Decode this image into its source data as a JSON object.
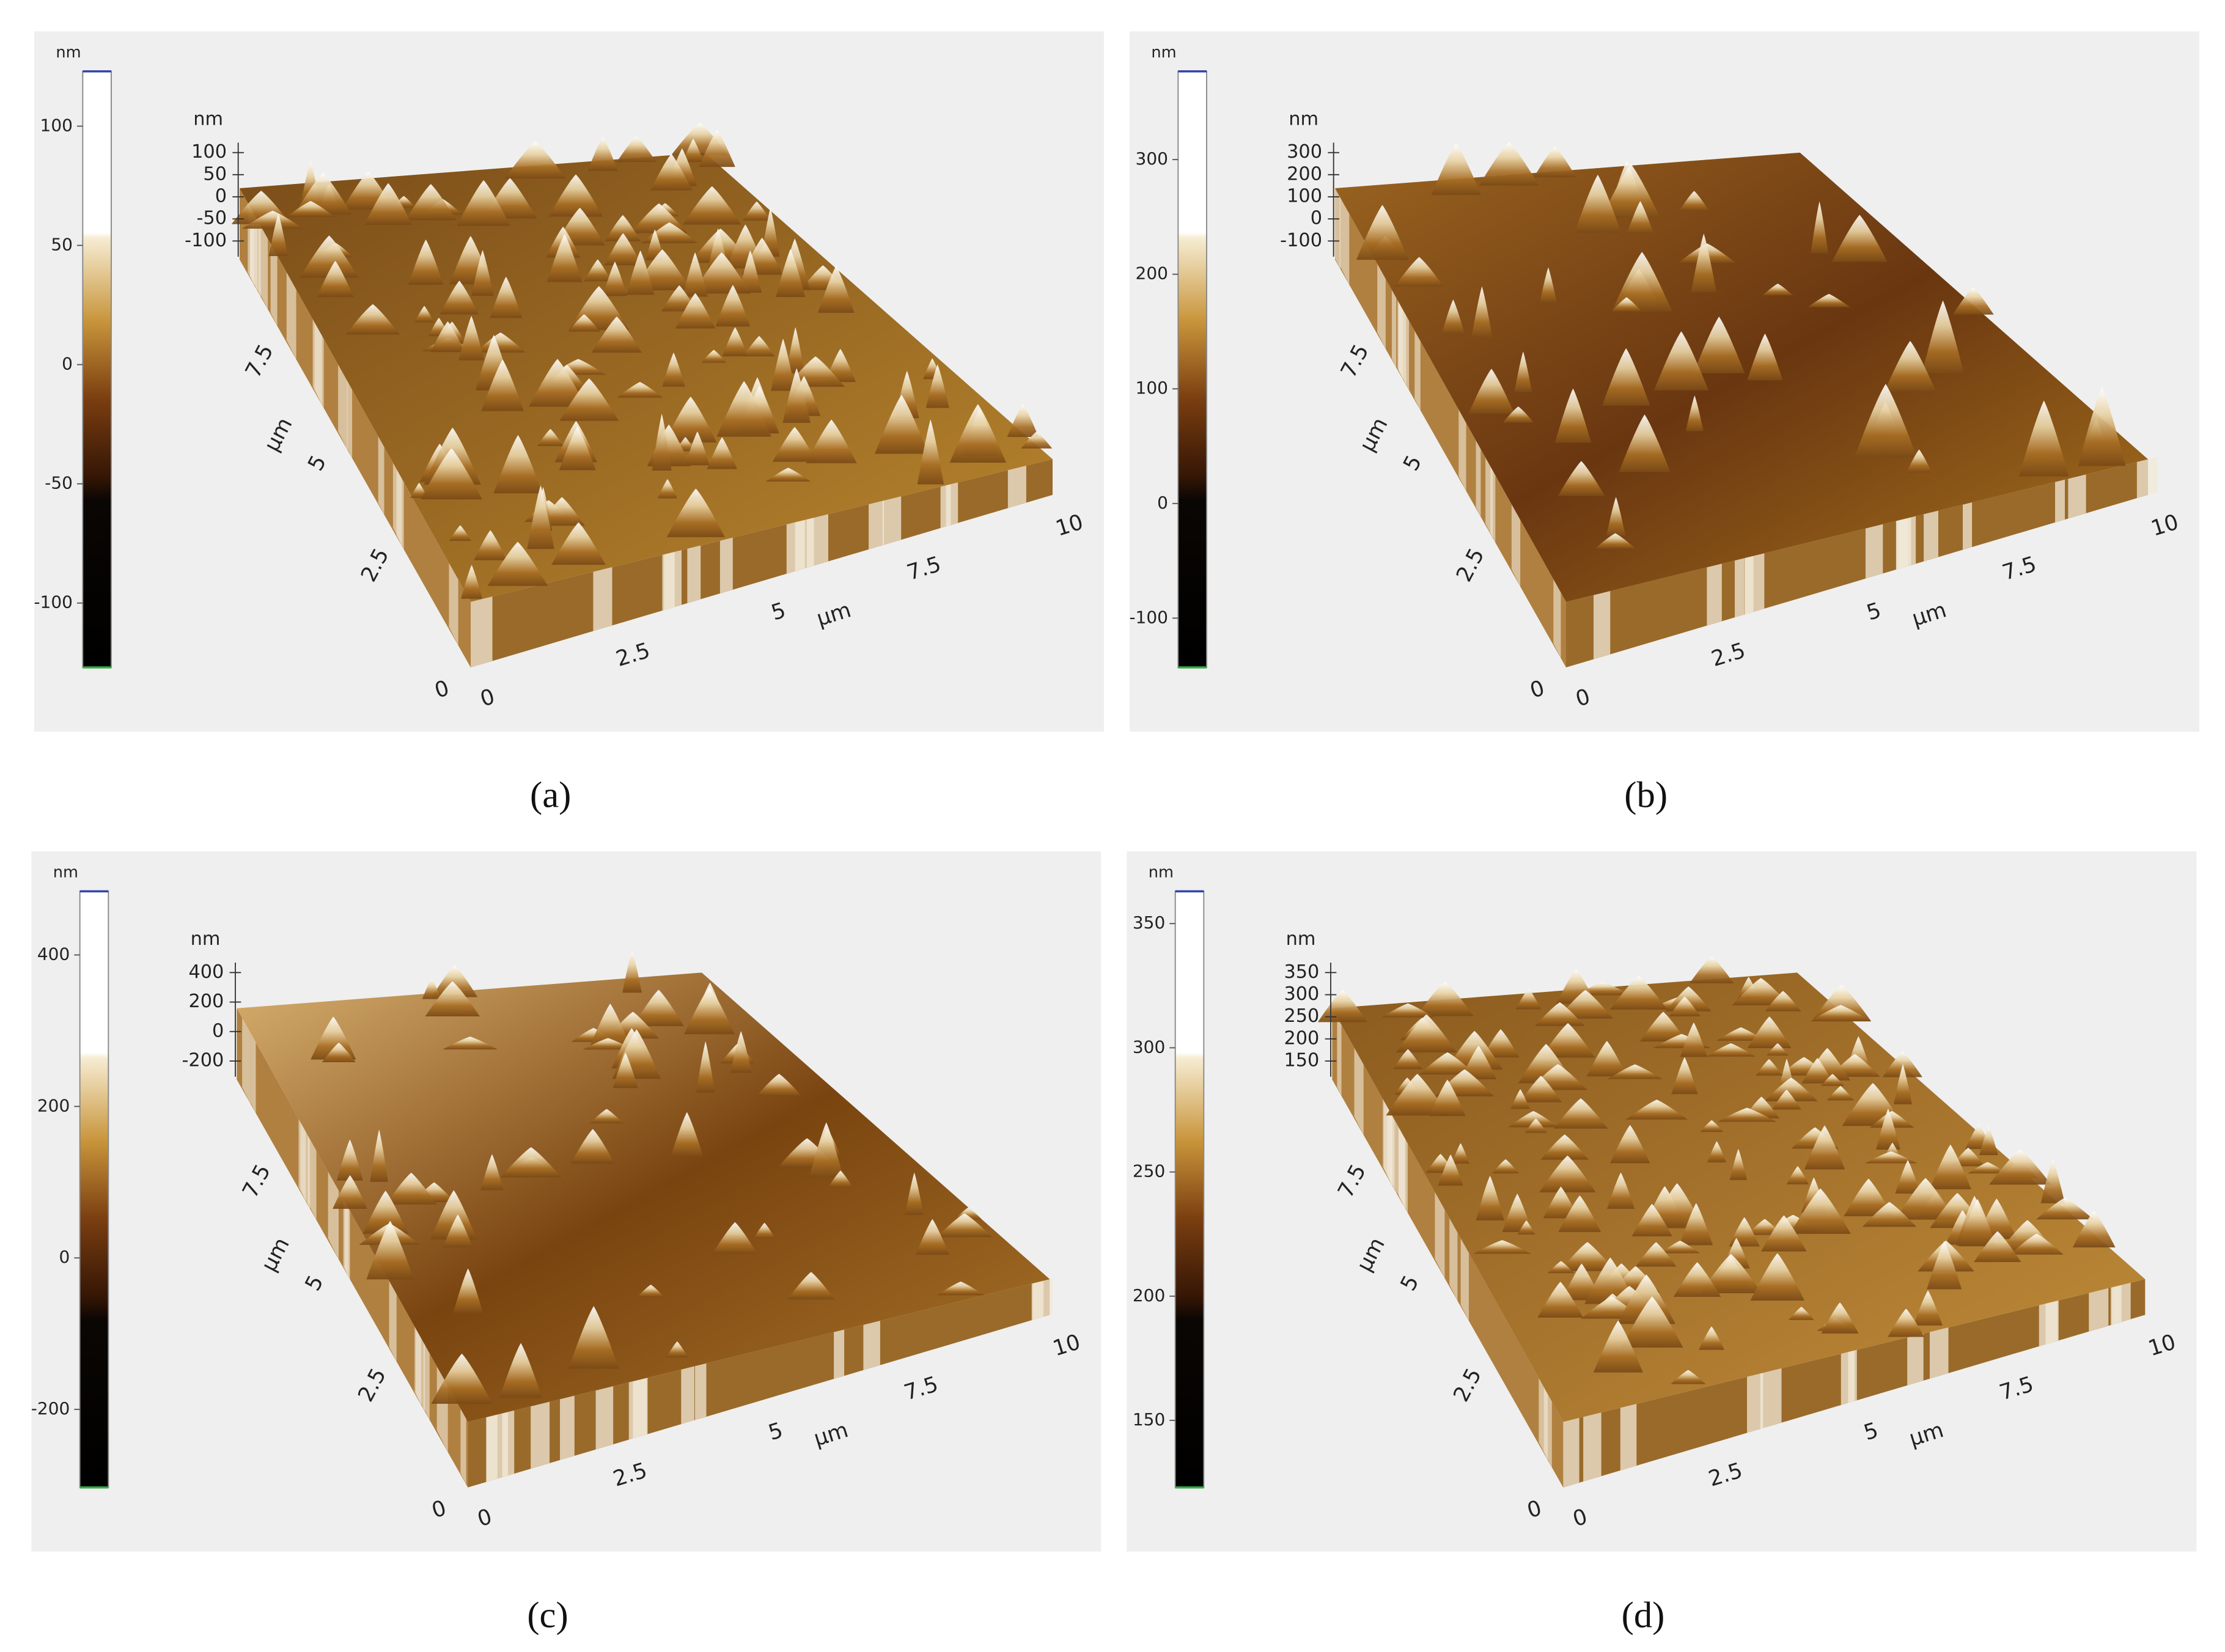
{
  "panels": [
    {
      "caption": "(a)",
      "colorbar": {
        "unit": "nm",
        "range": [
          -127,
          123
        ],
        "ticks": [
          100,
          50,
          0,
          -50,
          -100
        ]
      },
      "z_axis": {
        "unit": "nm",
        "ticks": [
          100,
          50,
          0,
          -50,
          -100
        ]
      },
      "x_axis": {
        "unit": "µm",
        "ticks": [
          "0",
          "2.5",
          "5",
          "7.5",
          "10"
        ]
      },
      "y_axis": {
        "unit": "µm",
        "ticks": [
          "0",
          "2.5",
          "5",
          "7.5"
        ]
      }
    },
    {
      "caption": "(b)",
      "colorbar": {
        "unit": "nm",
        "range": [
          -143,
          377
        ],
        "ticks": [
          300,
          200,
          100,
          0,
          -100
        ]
      },
      "z_axis": {
        "unit": "nm",
        "ticks": [
          300,
          200,
          100,
          0,
          -100
        ]
      },
      "x_axis": {
        "unit": "µm",
        "ticks": [
          "0",
          "2.5",
          "5",
          "7.5",
          "10"
        ]
      },
      "y_axis": {
        "unit": "µm",
        "ticks": [
          "0",
          "2.5",
          "5",
          "7.5"
        ]
      }
    },
    {
      "caption": "(c)",
      "colorbar": {
        "unit": "nm",
        "range": [
          -303,
          484
        ],
        "ticks": [
          400,
          200,
          0,
          -200
        ]
      },
      "z_axis": {
        "unit": "nm",
        "ticks": [
          400,
          200,
          0,
          -200
        ]
      },
      "x_axis": {
        "unit": "µm",
        "ticks": [
          "0",
          "2.5",
          "5",
          "7.5",
          "10"
        ]
      },
      "y_axis": {
        "unit": "µm",
        "ticks": [
          "0",
          "2.5",
          "5",
          "7.5"
        ]
      }
    },
    {
      "caption": "(d)",
      "colorbar": {
        "unit": "nm",
        "range": [
          123,
          363
        ],
        "ticks": [
          350,
          300,
          250,
          200,
          150
        ]
      },
      "z_axis": {
        "unit": "nm",
        "ticks": [
          350,
          300,
          250,
          200,
          150
        ]
      },
      "x_axis": {
        "unit": "µm",
        "ticks": [
          "0",
          "2.5",
          "5",
          "7.5",
          "10"
        ]
      },
      "y_axis": {
        "unit": "µm",
        "ticks": [
          "0",
          "2.5",
          "5",
          "7.5"
        ]
      }
    }
  ]
}
